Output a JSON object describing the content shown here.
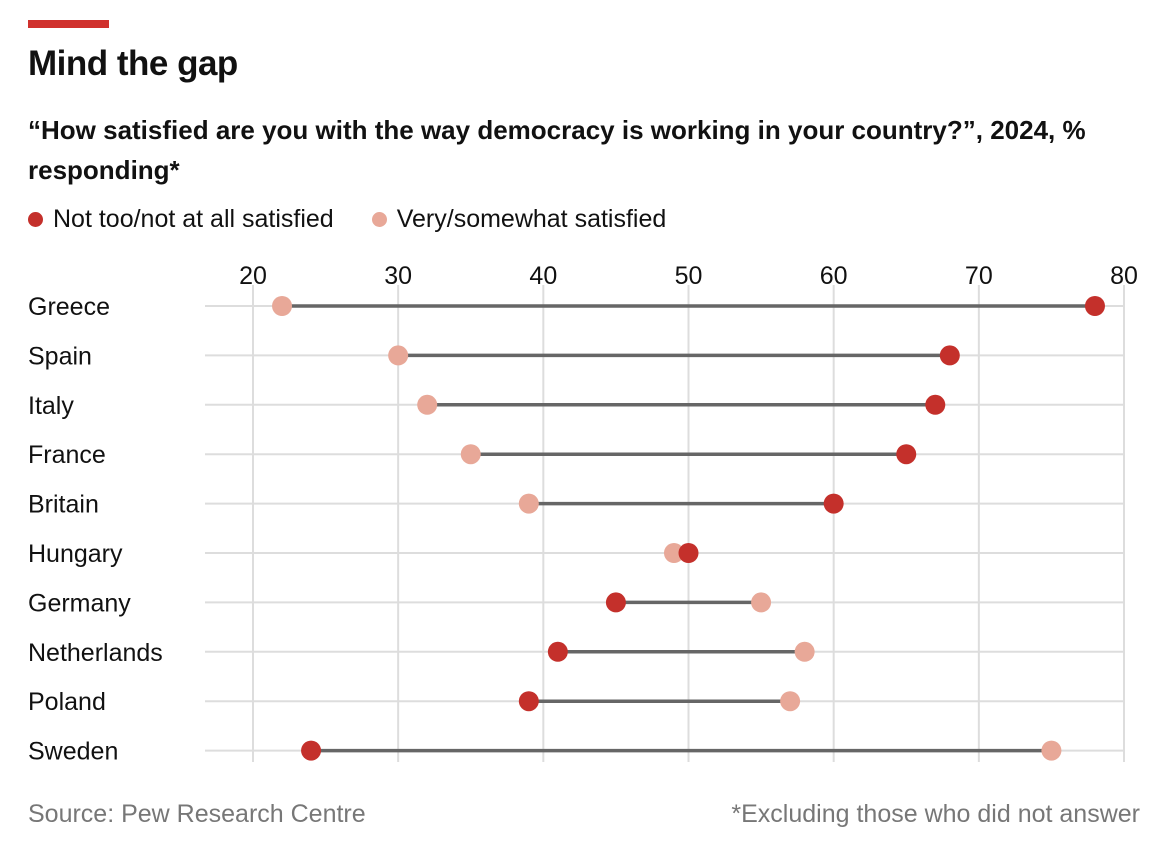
{
  "colors": {
    "accent": "#d0312d",
    "not_satisfied": "#c4302b",
    "satisfied": "#e8a898",
    "connector": "#666666",
    "grid": "#dddddd"
  },
  "chart_data": {
    "type": "dumbbell",
    "title": "Mind the gap",
    "subtitle": "“How satisfied are you with the way democracy is working in your country?”, 2024, % responding*",
    "legend": [
      "Not too/not at all satisfied",
      "Very/somewhat satisfied"
    ],
    "legend_placement": "top-left",
    "xlim": [
      20,
      80
    ],
    "xticks": [
      20,
      30,
      40,
      50,
      60,
      70,
      80
    ],
    "grid": true,
    "categories": [
      "Greece",
      "Spain",
      "Italy",
      "France",
      "Britain",
      "Hungary",
      "Germany",
      "Netherlands",
      "Poland",
      "Sweden"
    ],
    "series": [
      {
        "name": "Not too/not at all satisfied",
        "values": [
          78,
          68,
          67,
          65,
          60,
          50,
          45,
          41,
          39,
          24
        ]
      },
      {
        "name": "Very/somewhat satisfied",
        "values": [
          22,
          30,
          32,
          35,
          39,
          49,
          55,
          58,
          57,
          75
        ]
      }
    ],
    "source": "Source: Pew Research Centre",
    "note": "*Excluding those who did not answer"
  }
}
